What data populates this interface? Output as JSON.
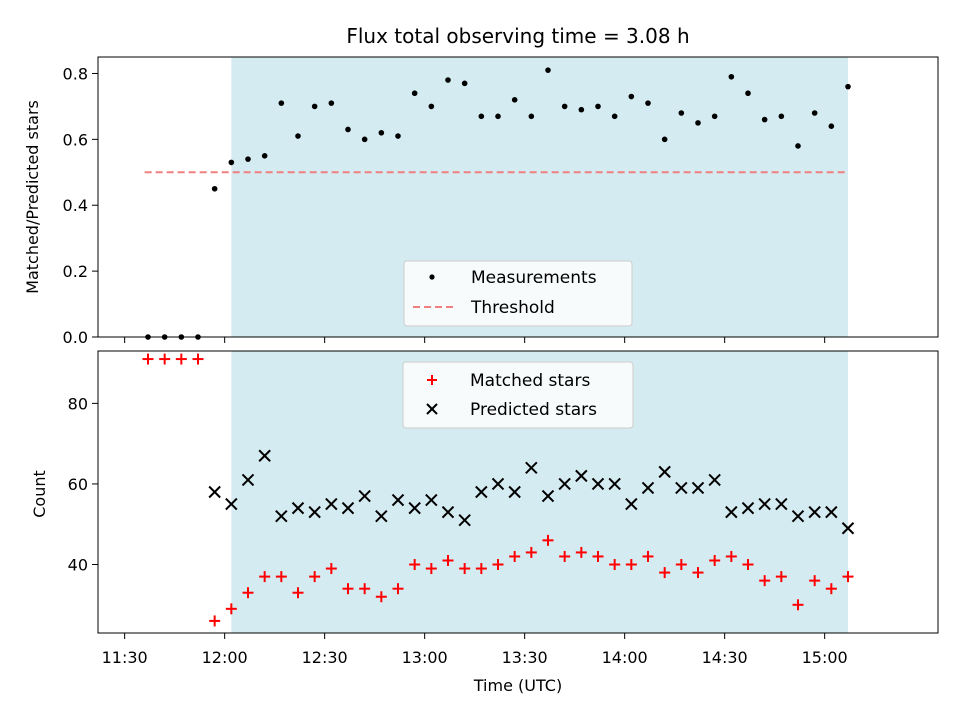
{
  "chart_data": [
    {
      "type": "scatter",
      "title": "Flux total observing time = 3.08 h",
      "ylabel": "Matched/Predicted stars",
      "xlabel": "",
      "ylim": [
        0,
        0.85
      ],
      "xlim": [
        "11:22",
        "15:34"
      ],
      "yticks": [
        0.0,
        0.2,
        0.4,
        0.6,
        0.8
      ],
      "ytick_labels": [
        "0.0",
        "0.2",
        "0.4",
        "0.6",
        "0.8"
      ],
      "shaded_span": [
        "12:02",
        "15:07"
      ],
      "shade_color": "#d4ebf1",
      "threshold": {
        "name": "Threshold",
        "value": 0.5,
        "x_range": [
          "11:36",
          "15:06"
        ],
        "color": "#f08080"
      },
      "legend": {
        "placement": "lower-center",
        "entries": [
          "Measurements",
          "Threshold"
        ]
      },
      "series": [
        {
          "name": "Measurements",
          "marker": "dot",
          "color": "#000000",
          "x": [
            "11:37",
            "11:42",
            "11:47",
            "11:52",
            "11:57",
            "12:02",
            "12:07",
            "12:12",
            "12:17",
            "12:22",
            "12:27",
            "12:32",
            "12:37",
            "12:42",
            "12:47",
            "12:52",
            "12:57",
            "13:02",
            "13:07",
            "13:12",
            "13:17",
            "13:22",
            "13:27",
            "13:32",
            "13:37",
            "13:42",
            "13:47",
            "13:52",
            "13:57",
            "14:02",
            "14:07",
            "14:12",
            "14:17",
            "14:22",
            "14:27",
            "14:32",
            "14:37",
            "14:42",
            "14:47",
            "14:52",
            "14:57",
            "15:02",
            "15:07"
          ],
          "values": [
            0.0,
            0.0,
            0.0,
            0.0,
            0.45,
            0.53,
            0.54,
            0.55,
            0.71,
            0.61,
            0.7,
            0.71,
            0.63,
            0.6,
            0.62,
            0.61,
            0.74,
            0.7,
            0.78,
            0.77,
            0.67,
            0.67,
            0.72,
            0.67,
            0.81,
            0.7,
            0.69,
            0.7,
            0.67,
            0.73,
            0.71,
            0.6,
            0.68,
            0.65,
            0.67,
            0.79,
            0.74,
            0.66,
            0.67,
            0.58,
            0.68,
            0.64,
            0.76
          ]
        }
      ]
    },
    {
      "type": "scatter",
      "title": "",
      "ylabel": "Count",
      "xlabel": "Time (UTC)",
      "ylim": [
        23,
        93
      ],
      "xlim": [
        "11:22",
        "15:34"
      ],
      "yticks": [
        40,
        60,
        80
      ],
      "ytick_labels": [
        "40",
        "60",
        "80"
      ],
      "xticks": [
        "11:30",
        "12:00",
        "12:30",
        "13:00",
        "13:30",
        "14:00",
        "14:30",
        "15:00"
      ],
      "xtick_labels": [
        "11:30",
        "12:00",
        "12:30",
        "13:00",
        "13:30",
        "14:00",
        "14:30",
        "15:00"
      ],
      "shaded_span": [
        "12:02",
        "15:07"
      ],
      "shade_color": "#d4ebf1",
      "legend": {
        "placement": "upper-center",
        "entries": [
          "Matched stars",
          "Predicted stars"
        ]
      },
      "series": [
        {
          "name": "Matched stars",
          "marker": "plus",
          "color": "#ff0000",
          "x": [
            "11:37",
            "11:42",
            "11:47",
            "11:52",
            "11:57",
            "12:02",
            "12:07",
            "12:12",
            "12:17",
            "12:22",
            "12:27",
            "12:32",
            "12:37",
            "12:42",
            "12:47",
            "12:52",
            "12:57",
            "13:02",
            "13:07",
            "13:12",
            "13:17",
            "13:22",
            "13:27",
            "13:32",
            "13:37",
            "13:42",
            "13:47",
            "13:52",
            "13:57",
            "14:02",
            "14:07",
            "14:12",
            "14:17",
            "14:22",
            "14:27",
            "14:32",
            "14:37",
            "14:42",
            "14:47",
            "14:52",
            "14:57",
            "15:02",
            "15:07"
          ],
          "values": [
            91,
            91,
            91,
            91,
            26,
            29,
            33,
            37,
            37,
            33,
            37,
            39,
            34,
            34,
            32,
            34,
            40,
            39,
            41,
            39,
            39,
            40,
            42,
            43,
            46,
            42,
            43,
            42,
            40,
            40,
            42,
            38,
            40,
            38,
            41,
            42,
            40,
            36,
            37,
            30,
            36,
            34,
            37
          ]
        },
        {
          "name": "Predicted stars",
          "marker": "x",
          "color": "#000000",
          "x": [
            "11:57",
            "12:02",
            "12:07",
            "12:12",
            "12:17",
            "12:22",
            "12:27",
            "12:32",
            "12:37",
            "12:42",
            "12:47",
            "12:52",
            "12:57",
            "13:02",
            "13:07",
            "13:12",
            "13:17",
            "13:22",
            "13:27",
            "13:32",
            "13:37",
            "13:42",
            "13:47",
            "13:52",
            "13:57",
            "14:02",
            "14:07",
            "14:12",
            "14:17",
            "14:22",
            "14:27",
            "14:32",
            "14:37",
            "14:42",
            "14:47",
            "14:52",
            "14:57",
            "15:02",
            "15:07"
          ],
          "values": [
            58,
            55,
            61,
            67,
            52,
            54,
            53,
            55,
            54,
            57,
            52,
            56,
            54,
            56,
            53,
            51,
            58,
            60,
            58,
            64,
            57,
            60,
            62,
            60,
            60,
            55,
            59,
            63,
            59,
            59,
            61,
            53,
            54,
            55,
            55,
            52,
            53,
            53,
            49
          ]
        }
      ]
    }
  ]
}
